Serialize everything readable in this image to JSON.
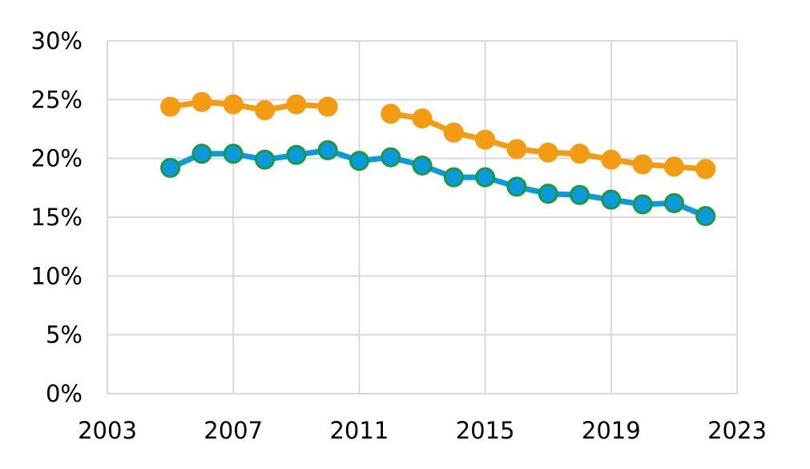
{
  "chart_data": {
    "type": "line",
    "title": "",
    "xlabel": "",
    "ylabel": "",
    "xlim": [
      2003,
      2023
    ],
    "ylim": [
      0,
      30
    ],
    "x_ticks": [
      2003,
      2007,
      2011,
      2015,
      2019,
      2023
    ],
    "x_tick_labels": [
      "2003",
      "2007",
      "2011",
      "2015",
      "2019",
      "2023"
    ],
    "y_ticks": [
      0,
      5,
      10,
      15,
      20,
      25,
      30
    ],
    "y_tick_labels": [
      "0%",
      "5%",
      "10%",
      "15%",
      "20%",
      "25%",
      "30%"
    ],
    "grid": true,
    "legend": "none",
    "series": [
      {
        "color": "#f39c12",
        "marker_fill": "#f39c12",
        "marker_stroke": "#f39c12",
        "points": [
          [
            2005,
            24.4
          ],
          [
            2006,
            24.8
          ],
          [
            2007,
            24.6
          ],
          [
            2008,
            24.1
          ],
          [
            2009,
            24.6
          ],
          [
            2010,
            24.4
          ],
          [
            2012,
            23.8
          ],
          [
            2013,
            23.4
          ],
          [
            2014,
            22.2
          ],
          [
            2015,
            21.6
          ],
          [
            2016,
            20.8
          ],
          [
            2017,
            20.5
          ],
          [
            2018,
            20.4
          ],
          [
            2019,
            19.9
          ],
          [
            2020,
            19.5
          ],
          [
            2021,
            19.3
          ],
          [
            2022,
            19.1
          ]
        ],
        "segments": [
          [
            0,
            5
          ],
          [
            6,
            16
          ]
        ]
      },
      {
        "color": "#0b9ae0",
        "marker_fill": "#0b9ae0",
        "marker_stroke": "#1a9a3a",
        "points": [
          [
            2005,
            19.2
          ],
          [
            2006,
            20.4
          ],
          [
            2007,
            20.4
          ],
          [
            2008,
            19.9
          ],
          [
            2009,
            20.3
          ],
          [
            2010,
            20.7
          ],
          [
            2011,
            19.8
          ],
          [
            2012,
            20.1
          ],
          [
            2013,
            19.4
          ],
          [
            2014,
            18.4
          ],
          [
            2015,
            18.4
          ],
          [
            2016,
            17.6
          ],
          [
            2017,
            17.0
          ],
          [
            2018,
            16.9
          ],
          [
            2019,
            16.5
          ],
          [
            2020,
            16.1
          ],
          [
            2021,
            16.2
          ],
          [
            2022,
            15.1
          ]
        ],
        "segments": [
          [
            0,
            17
          ]
        ]
      }
    ]
  }
}
